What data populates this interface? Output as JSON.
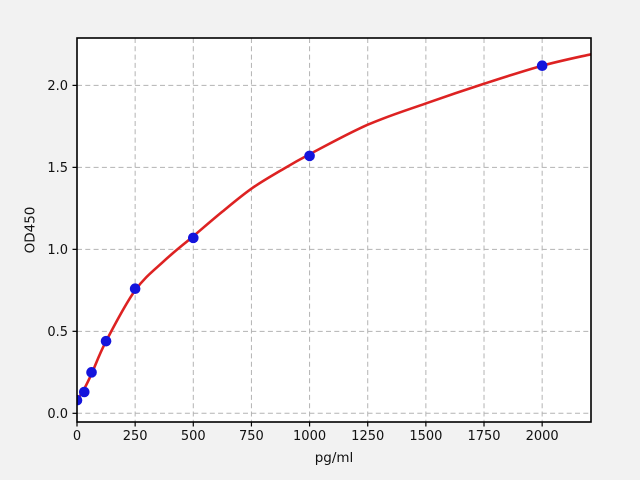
{
  "figure": {
    "background_color": "#f2f2f2",
    "plot_background_color": "#ffffff",
    "grid_color": "#b3b3b3",
    "spine_color": "#000000",
    "tick_color": "#111111",
    "scatter_color": "#1414dc",
    "curve_color": "#dd2222"
  },
  "chart_data": {
    "type": "scatter",
    "title": "",
    "xlabel": "pg/ml",
    "ylabel": "OD450",
    "xlim": [
      0,
      2210
    ],
    "ylim": [
      -0.053,
      2.289
    ],
    "x_ticks": [
      0,
      250,
      500,
      750,
      1000,
      1250,
      1500,
      1750,
      2000
    ],
    "y_ticks": [
      0.0,
      0.5,
      1.0,
      1.5,
      2.0
    ],
    "grid": true,
    "legend": "none",
    "series": [
      {
        "name": "standard-points",
        "type": "scatter",
        "color": "#1414dc",
        "x": [
          0,
          31.25,
          62.5,
          125,
          250,
          500,
          1000,
          2000
        ],
        "y": [
          0.08,
          0.13,
          0.25,
          0.44,
          0.76,
          1.07,
          1.57,
          2.12
        ]
      },
      {
        "name": "fitted-curve",
        "type": "line",
        "color": "#dd2222",
        "x": [
          0,
          31.25,
          62.5,
          125,
          250,
          375,
          500,
          625,
          750,
          875,
          1000,
          1250,
          1500,
          1750,
          2000,
          2210
        ],
        "y": [
          0.08,
          0.15,
          0.24,
          0.44,
          0.75,
          0.93,
          1.08,
          1.23,
          1.37,
          1.48,
          1.58,
          1.76,
          1.89,
          2.01,
          2.12,
          2.19
        ]
      }
    ]
  }
}
